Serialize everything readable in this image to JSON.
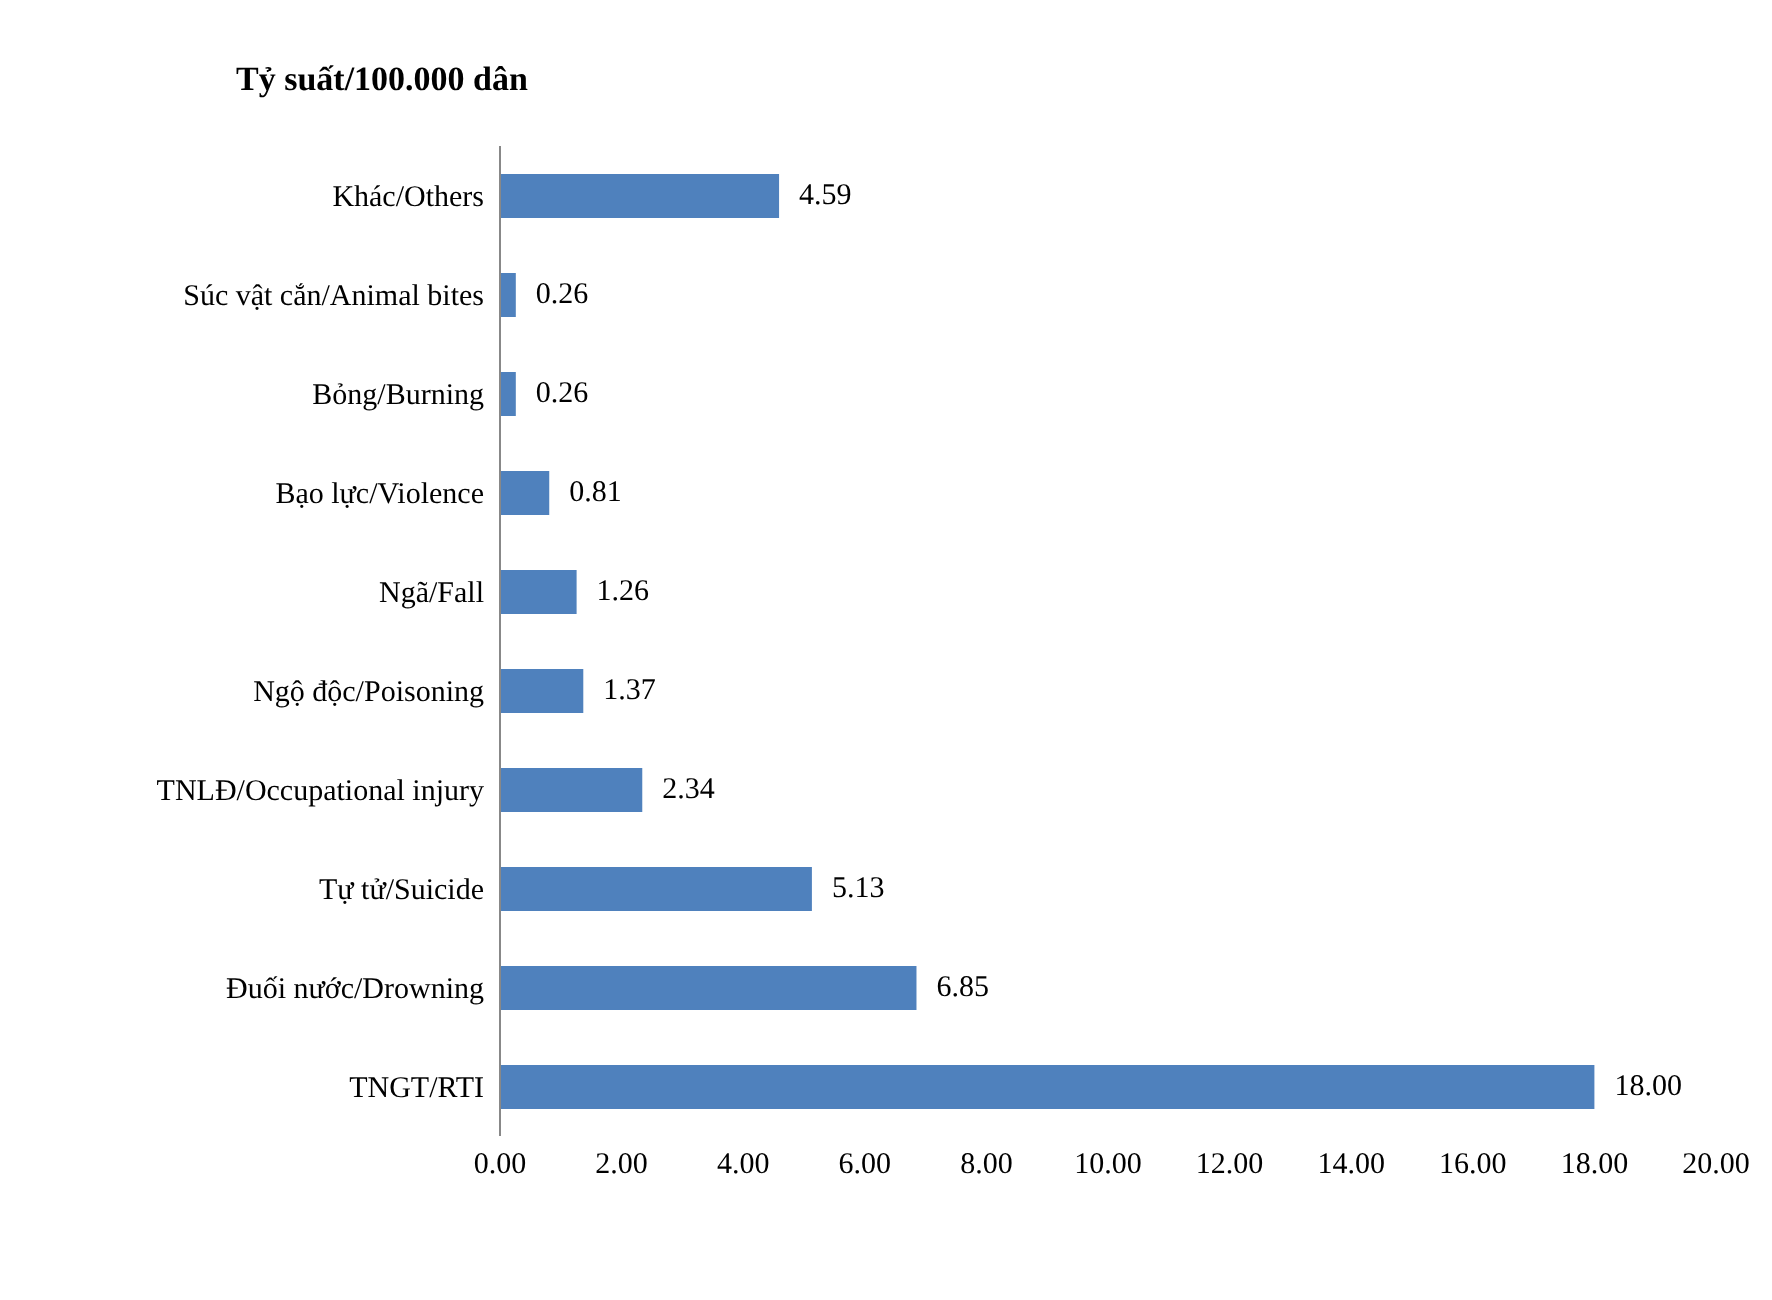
{
  "chart_data": {
    "type": "bar",
    "orientation": "horizontal",
    "title": "Tỷ suất/100.000 dân",
    "categories": [
      "Khác/Others",
      "Súc vật cắn/Animal bites",
      "Bỏng/Burning",
      "Bạo lực/Violence",
      "Ngã/Fall",
      "Ngộ độc/Poisoning",
      "TNLĐ/Occupational injury",
      "Tự tử/Suicide",
      "Đuối nước/Drowning",
      "TNGT/RTI"
    ],
    "values": [
      4.59,
      0.26,
      0.26,
      0.81,
      1.26,
      1.37,
      2.34,
      5.13,
      6.85,
      18.0
    ],
    "value_labels": [
      "4.59",
      "0.26",
      "0.26",
      "0.81",
      "1.26",
      "1.37",
      "2.34",
      "5.13",
      "6.85",
      "18.00"
    ],
    "color": "#4f81bd",
    "xlim": [
      0,
      20
    ],
    "xticks": [
      {
        "value": 0,
        "label": "0.00"
      },
      {
        "value": 2,
        "label": "2.00"
      },
      {
        "value": 4,
        "label": "4.00"
      },
      {
        "value": 6,
        "label": "6.00"
      },
      {
        "value": 8,
        "label": "8.00"
      },
      {
        "value": 10,
        "label": "10.00"
      },
      {
        "value": 12,
        "label": "12.00"
      },
      {
        "value": 14,
        "label": "14.00"
      },
      {
        "value": 16,
        "label": "16.00"
      },
      {
        "value": 18,
        "label": "18.00"
      },
      {
        "value": 20,
        "label": "20.00"
      }
    ],
    "grid": false,
    "legend": false
  }
}
